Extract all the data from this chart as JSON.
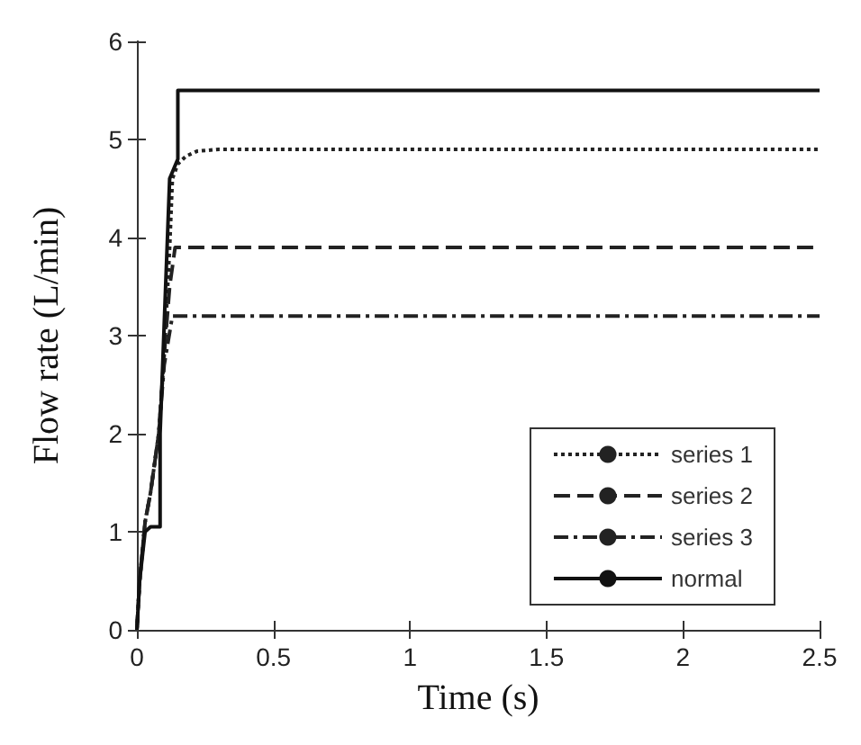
{
  "chart_data": {
    "type": "line",
    "xlabel": "Time (s)",
    "ylabel": "Flow rate (L/min)",
    "xlim": [
      0,
      2.5
    ],
    "xticks": [
      0,
      0.5,
      1,
      1.5,
      2,
      2.5
    ],
    "ylim": [
      0,
      6
    ],
    "yticks": [
      0,
      1,
      2,
      3,
      4,
      5,
      6
    ],
    "grid": false,
    "legend": "bottom right",
    "marker": "none",
    "series": [
      {
        "name": "series 1",
        "color": "#222222",
        "line_style": "dotted",
        "x": [
          0,
          0.01,
          0.03,
          0.05,
          0.08,
          0.1,
          0.12,
          0.13,
          0.15,
          0.18,
          0.22,
          0.3,
          2.5
        ],
        "values": [
          0,
          0.5,
          1.1,
          1.4,
          2,
          2.8,
          3.9,
          4.6,
          4.75,
          4.83,
          4.88,
          4.9,
          4.9
        ]
      },
      {
        "name": "series 2",
        "color": "#222222",
        "line_style": "dashed",
        "x": [
          0,
          0.01,
          0.03,
          0.05,
          0.08,
          0.1,
          0.12,
          0.14,
          2.5
        ],
        "values": [
          0,
          0.5,
          1.1,
          1.4,
          2,
          2.8,
          3.5,
          3.9,
          3.9
        ]
      },
      {
        "name": "series 3",
        "color": "#222222",
        "line_style": "dashdot",
        "x": [
          0,
          0.01,
          0.03,
          0.05,
          0.08,
          0.1,
          0.13,
          2.5
        ],
        "values": [
          0,
          0.5,
          1.1,
          1.4,
          2,
          2.7,
          3.2,
          3.2
        ]
      },
      {
        "name": "normal",
        "color": "#111111",
        "line_style": "solid",
        "x": [
          0,
          0.01,
          0.03,
          0.05,
          0.085,
          0.085,
          0.12,
          0.15,
          0.15,
          2.5
        ],
        "values": [
          0,
          0.5,
          1.0,
          1.05,
          1.05,
          2,
          4.6,
          4.8,
          5.5,
          5.5
        ]
      }
    ]
  }
}
